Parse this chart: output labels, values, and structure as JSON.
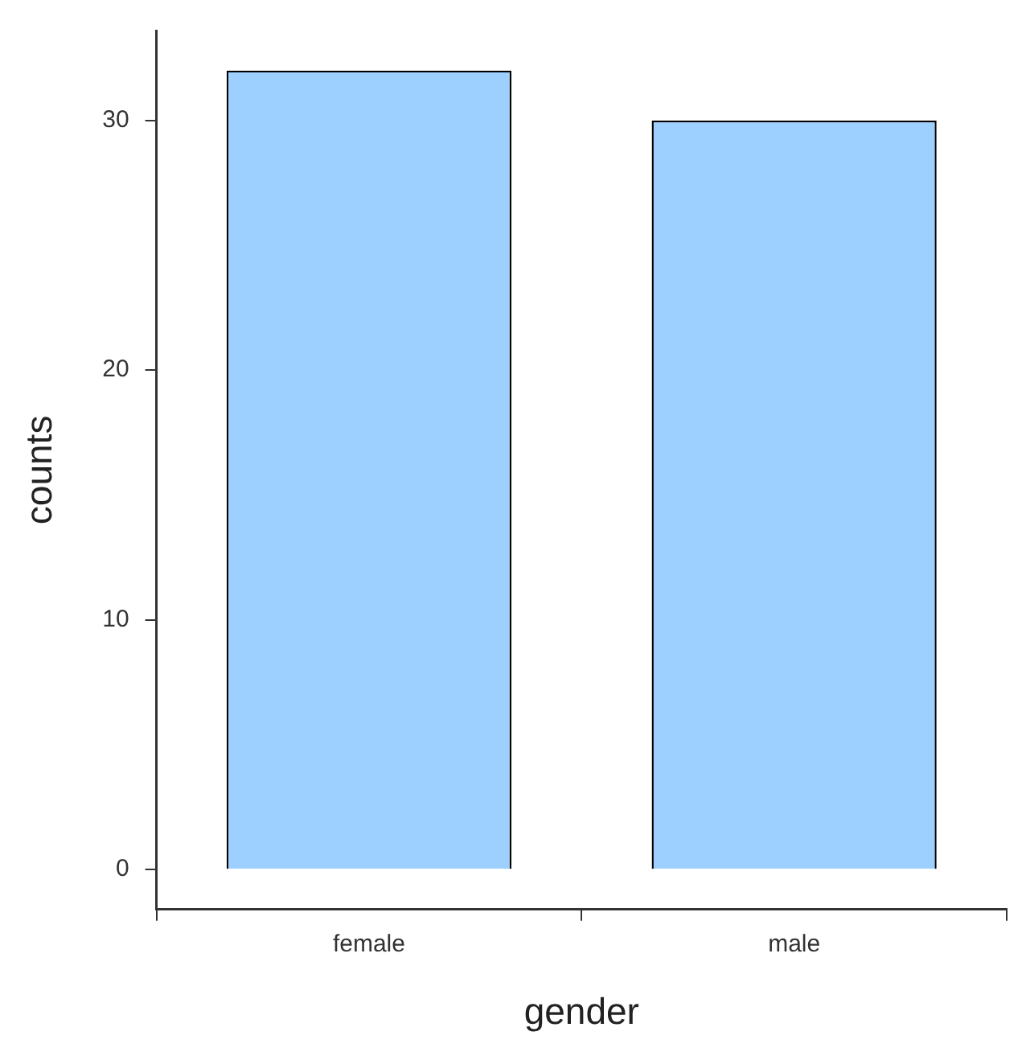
{
  "chart_data": {
    "type": "bar",
    "xlabel": "gender",
    "ylabel": "counts",
    "categories": [
      "female",
      "male"
    ],
    "values": [
      32,
      30
    ],
    "color": "#9dcfff",
    "ylim": [
      -1.6,
      33.6
    ],
    "yticks": [
      0,
      10,
      20,
      30
    ],
    "grid": false,
    "legend": false
  }
}
